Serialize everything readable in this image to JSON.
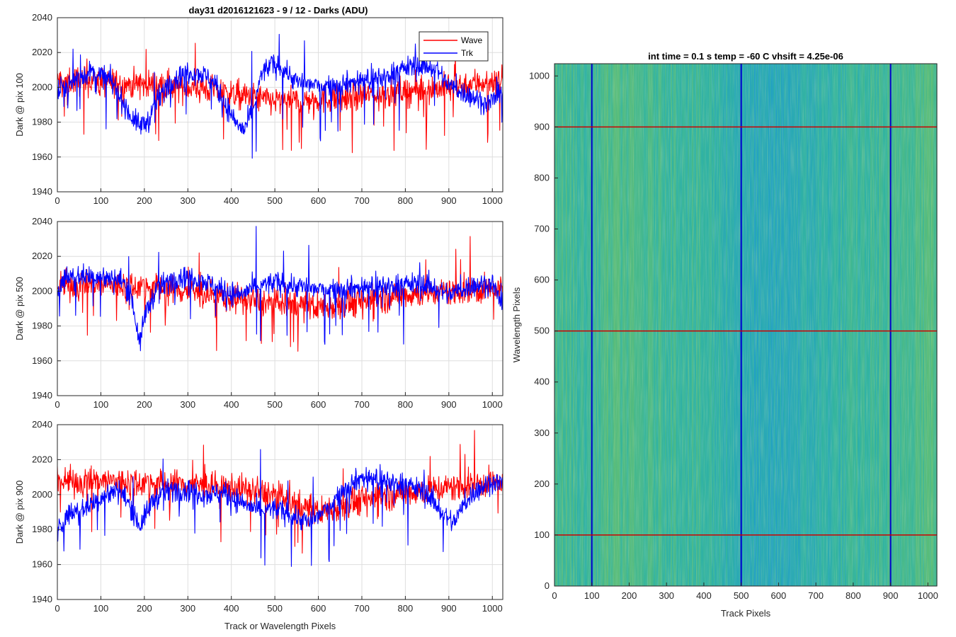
{
  "chart_data": [
    {
      "type": "line",
      "title": "day31 d2016121623 - 9 / 12 - Darks (ADU)",
      "xlabel": "",
      "ylabel": "Dark @ pix 100",
      "xlim": [
        0,
        1024
      ],
      "ylim": [
        1940,
        2040
      ],
      "xticks": [
        0,
        100,
        200,
        300,
        400,
        500,
        600,
        700,
        800,
        900,
        1000
      ],
      "yticks": [
        1940,
        1960,
        1980,
        2000,
        2020,
        2040
      ],
      "grid": true,
      "legend": {
        "placement": "top-right",
        "entries": [
          "Wave",
          "Trk"
        ]
      },
      "series": [
        {
          "name": "Wave",
          "color": "#ff0000",
          "x": [
            0,
            50,
            100,
            150,
            200,
            250,
            300,
            350,
            400,
            450,
            500,
            550,
            600,
            650,
            700,
            750,
            800,
            850,
            900,
            950,
            1000,
            1024
          ],
          "y": [
            2004,
            2004,
            2003,
            2002,
            2002,
            2001,
            2000,
            1999,
            1996,
            1994,
            1992,
            1992,
            1993,
            1994,
            1995,
            1996,
            1998,
            1999,
            2000,
            2002,
            2004,
            2005
          ]
        },
        {
          "name": "Trk",
          "color": "#0000ff",
          "x": [
            0,
            20,
            50,
            80,
            120,
            150,
            170,
            190,
            210,
            230,
            260,
            300,
            330,
            360,
            380,
            410,
            430,
            450,
            470,
            490,
            520,
            550,
            600,
            650,
            700,
            750,
            780,
            800,
            830,
            870,
            900,
            950,
            990,
            1024
          ],
          "y": [
            1998,
            2000,
            2006,
            2009,
            2005,
            1992,
            1983,
            1978,
            1981,
            1993,
            2004,
            2009,
            2008,
            2003,
            1993,
            1980,
            1975,
            1988,
            2008,
            2013,
            2011,
            2003,
            2001,
            2002,
            2004,
            2006,
            2009,
            2011,
            2013,
            2011,
            2001,
            1995,
            1991,
            1996
          ]
        }
      ]
    },
    {
      "type": "line",
      "title": "",
      "xlabel": "",
      "ylabel": "Dark @ pix 500",
      "xlim": [
        0,
        1024
      ],
      "ylim": [
        1940,
        2040
      ],
      "xticks": [
        0,
        100,
        200,
        300,
        400,
        500,
        600,
        700,
        800,
        900,
        1000
      ],
      "yticks": [
        1940,
        1960,
        1980,
        2000,
        2020,
        2040
      ],
      "grid": true,
      "series": [
        {
          "name": "Wave",
          "color": "#ff0000",
          "x": [
            0,
            100,
            200,
            300,
            400,
            500,
            600,
            700,
            800,
            900,
            1000,
            1024
          ],
          "y": [
            2003,
            2004,
            2003,
            2000,
            1996,
            1993,
            1991,
            1994,
            1998,
            2000,
            2001,
            2000
          ]
        },
        {
          "name": "Trk",
          "color": "#0000ff",
          "x": [
            0,
            20,
            60,
            100,
            150,
            170,
            180,
            190,
            200,
            230,
            280,
            330,
            380,
            420,
            460,
            500,
            550,
            600,
            650,
            700,
            750,
            800,
            850,
            900,
            950,
            1000,
            1024
          ],
          "y": [
            2002,
            2008,
            2009,
            2008,
            2006,
            1998,
            1983,
            1969,
            1986,
            2002,
            2009,
            2007,
            2000,
            1998,
            2003,
            2005,
            2003,
            2001,
            2002,
            2002,
            2003,
            2004,
            2004,
            1998,
            2003,
            2005,
            1990
          ]
        }
      ]
    },
    {
      "type": "line",
      "title": "",
      "xlabel": "Track or Wavelength Pixels",
      "ylabel": "Dark @ pix 900",
      "xlim": [
        0,
        1024
      ],
      "ylim": [
        1940,
        2040
      ],
      "xticks": [
        0,
        100,
        200,
        300,
        400,
        500,
        600,
        700,
        800,
        900,
        1000
      ],
      "yticks": [
        1940,
        1960,
        1980,
        2000,
        2020,
        2040
      ],
      "grid": true,
      "series": [
        {
          "name": "Wave",
          "color": "#ff0000",
          "x": [
            0,
            100,
            200,
            300,
            400,
            500,
            550,
            600,
            650,
            700,
            800,
            900,
            1000,
            1024
          ],
          "y": [
            2007,
            2008,
            2007,
            2006,
            2004,
            2000,
            1994,
            1990,
            1993,
            1997,
            2001,
            2004,
            2007,
            2006
          ]
        },
        {
          "name": "Trk",
          "color": "#0000ff",
          "x": [
            0,
            20,
            60,
            100,
            140,
            170,
            190,
            220,
            260,
            300,
            340,
            380,
            420,
            460,
            500,
            540,
            580,
            620,
            660,
            700,
            750,
            800,
            850,
            890,
            910,
            950,
            1000,
            1024
          ],
          "y": [
            1978,
            1988,
            1992,
            1998,
            2003,
            1993,
            1982,
            1997,
            2003,
            2003,
            2000,
            2001,
            1996,
            1991,
            1992,
            1988,
            1984,
            1992,
            2004,
            2010,
            2008,
            2006,
            2001,
            1988,
            1984,
            2000,
            2008,
            2006
          ]
        }
      ]
    },
    {
      "type": "heatmap",
      "title": "int time = 0.1 s   temp = -60 C   vhsift = 4.25e-06",
      "xlabel": "Track Pixels",
      "ylabel": "Wavelength Pixels",
      "xlim": [
        0,
        1024
      ],
      "ylim": [
        0,
        1024
      ],
      "xticks": [
        0,
        100,
        200,
        300,
        400,
        500,
        600,
        700,
        800,
        900,
        1000
      ],
      "yticks": [
        0,
        100,
        200,
        300,
        400,
        500,
        600,
        700,
        800,
        900,
        1000
      ],
      "colormap": "parula",
      "column_profile": {
        "x": [
          0,
          80,
          150,
          250,
          350,
          450,
          500,
          560,
          600,
          650,
          700,
          800,
          900,
          950,
          1000,
          1024
        ],
        "level": [
          0.62,
          0.56,
          0.64,
          0.6,
          0.58,
          0.52,
          0.47,
          0.42,
          0.44,
          0.47,
          0.5,
          0.55,
          0.58,
          0.63,
          0.66,
          0.65
        ]
      },
      "vertical_markers": {
        "color": "#0000cc",
        "x": [
          100,
          500,
          900
        ]
      },
      "horizontal_markers": {
        "color": "#cc0000",
        "y": [
          100,
          500,
          900
        ]
      }
    }
  ]
}
